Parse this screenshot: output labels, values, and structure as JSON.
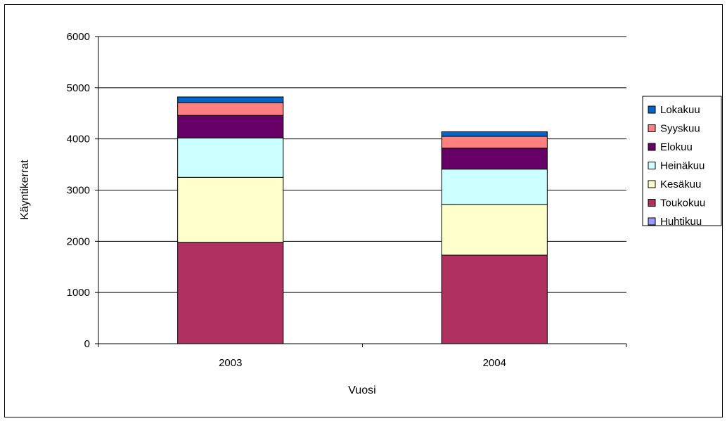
{
  "chart_data": {
    "type": "bar",
    "stacked": true,
    "categories": [
      "2003",
      "2004"
    ],
    "series": [
      {
        "name": "Huhtikuu",
        "color": "#9999FF",
        "values": [
          0,
          0
        ]
      },
      {
        "name": "Toukokuu",
        "color": "#B03060",
        "values": [
          1980,
          1730
        ]
      },
      {
        "name": "Kesäkuu",
        "color": "#FFFFCC",
        "values": [
          1270,
          990
        ]
      },
      {
        "name": "Heinäkuu",
        "color": "#CCFFFF",
        "values": [
          770,
          690
        ]
      },
      {
        "name": "Elokuu",
        "color": "#660066",
        "values": [
          440,
          410
        ]
      },
      {
        "name": "Syyskuu",
        "color": "#FF8080",
        "values": [
          250,
          230
        ]
      },
      {
        "name": "Lokakuu",
        "color": "#0066CC",
        "values": [
          110,
          90
        ]
      }
    ],
    "xlabel": "Vuosi",
    "ylabel": "Käyntikerrat",
    "ylim": [
      0,
      6000
    ],
    "yticks": [
      0,
      1000,
      2000,
      3000,
      4000,
      5000,
      6000
    ],
    "grid": true,
    "legend_position": "right",
    "legend_order": [
      "Lokakuu",
      "Syyskuu",
      "Elokuu",
      "Heinäkuu",
      "Kesäkuu",
      "Toukokuu",
      "Huhtikuu"
    ]
  }
}
